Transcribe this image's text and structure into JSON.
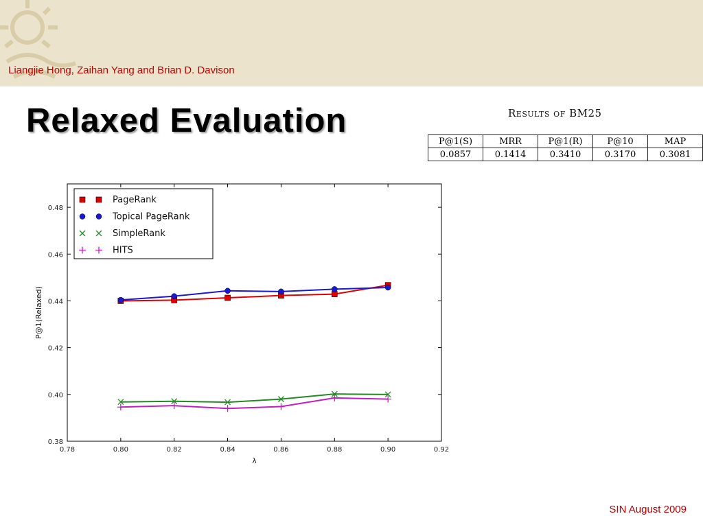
{
  "header": {
    "authors": "Liangjie Hong, Zaihan Yang and Brian D. Davison"
  },
  "slide": {
    "title": "Relaxed Evaluation"
  },
  "table": {
    "caption": "Results of BM25",
    "columns": [
      "P@1(S)",
      "MRR",
      "P@1(R)",
      "P@10",
      "MAP"
    ],
    "values": [
      "0.0857",
      "0.1414",
      "0.3410",
      "0.3170",
      "0.3081"
    ]
  },
  "footer": {
    "text": "SIN August 2009"
  },
  "chart_data": {
    "type": "line",
    "x": [
      0.8,
      0.82,
      0.84,
      0.86,
      0.88,
      0.9
    ],
    "xlim": [
      0.78,
      0.92
    ],
    "ylim": [
      0.38,
      0.49
    ],
    "xticks": [
      "0.78",
      "0.80",
      "0.82",
      "0.84",
      "0.86",
      "0.88",
      "0.90",
      "0.92"
    ],
    "yticks": [
      "0.38",
      "0.40",
      "0.42",
      "0.44",
      "0.46",
      "0.48"
    ],
    "xlabel": "λ",
    "ylabel": "P@1(Relaxed)",
    "grid": false,
    "legend_position": "top-left",
    "series": [
      {
        "name": "PageRank",
        "marker": "square",
        "color": "#e00000",
        "values": [
          0.44,
          0.4403,
          0.4413,
          0.4423,
          0.4429,
          0.4467
        ]
      },
      {
        "name": "Topical PageRank",
        "marker": "circle",
        "color": "#1a1acc",
        "values": [
          0.4404,
          0.442,
          0.4443,
          0.444,
          0.445,
          0.4457
        ]
      },
      {
        "name": "SimpleRank",
        "marker": "x",
        "color": "#228b22",
        "values": [
          0.3968,
          0.3971,
          0.3967,
          0.398,
          0.4002,
          0.4
        ]
      },
      {
        "name": "HITS",
        "marker": "plus",
        "color": "#c020c0",
        "values": [
          0.3946,
          0.3952,
          0.394,
          0.3948,
          0.3985,
          0.398
        ]
      }
    ]
  }
}
